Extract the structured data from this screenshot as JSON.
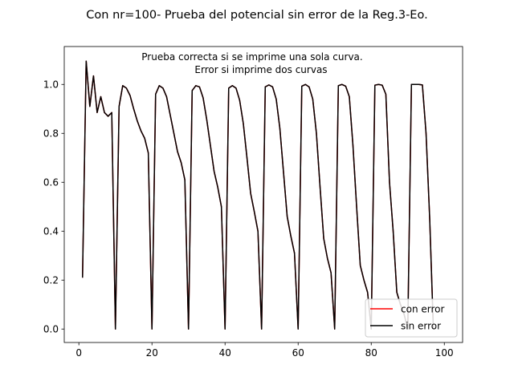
{
  "chart_data": {
    "type": "line",
    "title": "Con nr=100- Prueba del potencial sin error  de la Reg.3-Eo.",
    "annotation": [
      "Prueba correcta si se imprime una sola curva.",
      "Error si imprime dos curvas"
    ],
    "xlim": [
      -4,
      105
    ],
    "ylim": [
      -0.055,
      1.155
    ],
    "xticks": [
      0,
      20,
      40,
      60,
      80,
      100
    ],
    "yticks": [
      0.0,
      0.2,
      0.4,
      0.6,
      0.8,
      1.0
    ],
    "xtick_labels": [
      "0",
      "20",
      "40",
      "60",
      "80",
      "100"
    ],
    "ytick_labels": [
      "0.0",
      "0.2",
      "0.4",
      "0.6",
      "0.8",
      "1.0"
    ],
    "legend_position": "bottom-right",
    "x": [
      1,
      2,
      3,
      4,
      5,
      6,
      7,
      8,
      9,
      10,
      11,
      12,
      13,
      14,
      15,
      16,
      17,
      18,
      19,
      20,
      21,
      22,
      23,
      24,
      25,
      26,
      27,
      28,
      29,
      30,
      31,
      32,
      33,
      34,
      35,
      36,
      37,
      38,
      39,
      40,
      41,
      42,
      43,
      44,
      45,
      46,
      47,
      48,
      49,
      50,
      51,
      52,
      53,
      54,
      55,
      56,
      57,
      58,
      59,
      60,
      61,
      62,
      63,
      64,
      65,
      66,
      67,
      68,
      69,
      70,
      71,
      72,
      73,
      74,
      75,
      76,
      77,
      78,
      79,
      80,
      81,
      82,
      83,
      84,
      85,
      86,
      87,
      88,
      89,
      90,
      91,
      92,
      93,
      94,
      95,
      96,
      97
    ],
    "series": [
      {
        "name": "con error",
        "color": "#ff0000",
        "values": [
          0.21,
          1.095,
          0.91,
          1.035,
          0.885,
          0.95,
          0.885,
          0.87,
          0.885,
          0.0,
          0.91,
          0.995,
          0.985,
          0.955,
          0.9,
          0.85,
          0.81,
          0.78,
          0.72,
          0.0,
          0.96,
          0.995,
          0.985,
          0.95,
          0.875,
          0.8,
          0.725,
          0.68,
          0.61,
          0.0,
          0.975,
          0.995,
          0.99,
          0.945,
          0.855,
          0.75,
          0.645,
          0.58,
          0.5,
          0.0,
          0.985,
          0.995,
          0.985,
          0.935,
          0.84,
          0.7,
          0.555,
          0.48,
          0.4,
          0.0,
          0.99,
          0.998,
          0.99,
          0.94,
          0.82,
          0.64,
          0.46,
          0.38,
          0.31,
          0.0,
          0.993,
          1.0,
          0.99,
          0.94,
          0.8,
          0.58,
          0.37,
          0.29,
          0.23,
          0.0,
          0.995,
          1.0,
          0.993,
          0.95,
          0.75,
          0.5,
          0.26,
          0.2,
          0.15,
          0.0,
          0.997,
          1.0,
          0.997,
          0.96,
          0.6,
          0.4,
          0.15,
          0.1,
          0.06,
          0.0,
          1.0,
          1.0,
          1.0,
          0.998,
          0.8,
          0.45,
          0.0
        ]
      },
      {
        "name": "sin error",
        "color": "#000000",
        "values": [
          0.21,
          1.095,
          0.91,
          1.035,
          0.885,
          0.95,
          0.885,
          0.87,
          0.885,
          0.0,
          0.91,
          0.995,
          0.985,
          0.955,
          0.9,
          0.85,
          0.81,
          0.78,
          0.72,
          0.0,
          0.96,
          0.995,
          0.985,
          0.95,
          0.875,
          0.8,
          0.725,
          0.68,
          0.61,
          0.0,
          0.975,
          0.995,
          0.99,
          0.945,
          0.855,
          0.75,
          0.645,
          0.58,
          0.5,
          0.0,
          0.985,
          0.995,
          0.985,
          0.935,
          0.84,
          0.7,
          0.555,
          0.48,
          0.4,
          0.0,
          0.99,
          0.998,
          0.99,
          0.94,
          0.82,
          0.64,
          0.46,
          0.38,
          0.31,
          0.0,
          0.993,
          1.0,
          0.99,
          0.94,
          0.8,
          0.58,
          0.37,
          0.29,
          0.23,
          0.0,
          0.995,
          1.0,
          0.993,
          0.95,
          0.75,
          0.5,
          0.26,
          0.2,
          0.15,
          0.0,
          0.997,
          1.0,
          0.997,
          0.96,
          0.6,
          0.4,
          0.15,
          0.1,
          0.06,
          0.0,
          1.0,
          1.0,
          1.0,
          0.998,
          0.8,
          0.45,
          0.0
        ]
      }
    ]
  }
}
